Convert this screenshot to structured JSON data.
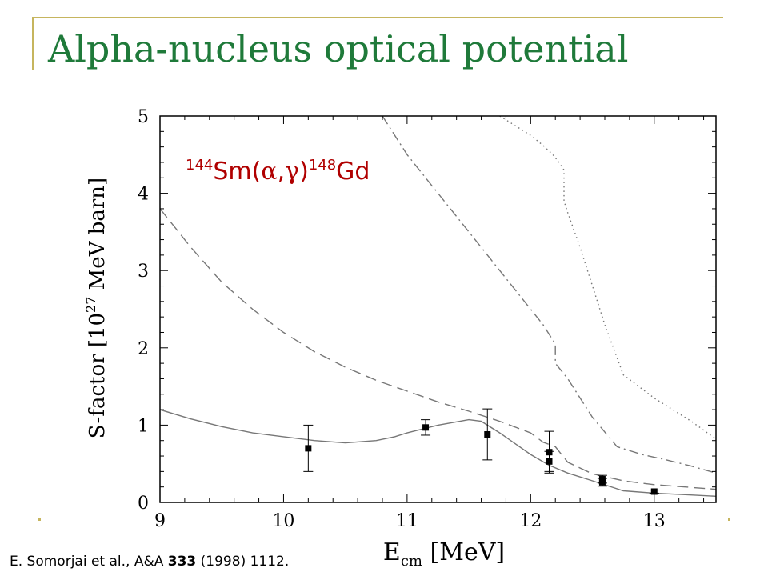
{
  "slide": {
    "title": "Alpha-nucleus optical potential",
    "citation": {
      "authors": "E. Somorjai et al., A&A ",
      "volume": "333",
      "rest": " (1998) 1112."
    }
  },
  "colors": {
    "title": "#1f7a3a",
    "accent_rule": "#c6b55e",
    "reaction_label": "#b00000",
    "curve": "#777777",
    "points": "#000000"
  },
  "chart_data": {
    "type": "line",
    "title": "",
    "xlabel": "E",
    "xlabel_sub": "cm",
    "xlabel_unit": " [MeV]",
    "ylabel_prefix": "S-factor   [10",
    "ylabel_sup": "27",
    "ylabel_suffix": " MeV barn]",
    "xlim": [
      9,
      13.5
    ],
    "ylim": [
      0,
      5
    ],
    "xticks": [
      9,
      10,
      11,
      12,
      13
    ],
    "yticks": [
      0,
      1,
      2,
      3,
      4,
      5
    ],
    "grid": false,
    "annotation": {
      "pre": "144",
      "target": "Sm(",
      "alpha": "α",
      "comma": ",",
      "gamma": "γ",
      "close": ")",
      "post": "148",
      "product": "Gd",
      "at": [
        9.2,
        4.2
      ]
    },
    "series": [
      {
        "style": "dotted",
        "x": [
          11.75,
          11.9,
          12.0,
          12.1,
          12.18,
          12.23,
          12.27,
          12.27,
          12.3,
          12.4,
          12.5,
          12.6,
          12.75,
          13.0,
          13.3,
          13.5
        ],
        "y": [
          5.0,
          4.85,
          4.75,
          4.62,
          4.5,
          4.4,
          4.3,
          3.9,
          3.75,
          3.3,
          2.8,
          2.3,
          1.65,
          1.35,
          1.05,
          0.82
        ]
      },
      {
        "style": "dashdot",
        "x": [
          10.8,
          11.0,
          11.25,
          11.5,
          11.75,
          12.0,
          12.1,
          12.18,
          12.2,
          12.2,
          12.3,
          12.5,
          12.7,
          12.9,
          13.1,
          13.3,
          13.5
        ],
        "y": [
          5.0,
          4.5,
          4.0,
          3.5,
          3.0,
          2.5,
          2.3,
          2.1,
          2.05,
          1.8,
          1.6,
          1.1,
          0.72,
          0.62,
          0.55,
          0.47,
          0.38
        ]
      },
      {
        "style": "dashed",
        "x": [
          9.0,
          9.25,
          9.5,
          9.75,
          10.0,
          10.25,
          10.5,
          10.75,
          11.0,
          11.25,
          11.5,
          11.75,
          12.0,
          12.1,
          12.2,
          12.3,
          12.5,
          12.75,
          13.0,
          13.25,
          13.5
        ],
        "y": [
          3.8,
          3.3,
          2.85,
          2.5,
          2.2,
          1.95,
          1.75,
          1.58,
          1.44,
          1.3,
          1.18,
          1.05,
          0.9,
          0.78,
          0.72,
          0.52,
          0.37,
          0.28,
          0.23,
          0.2,
          0.17
        ]
      },
      {
        "style": "solid",
        "x": [
          9.0,
          9.25,
          9.5,
          9.75,
          10.0,
          10.25,
          10.5,
          10.75,
          10.9,
          11.0,
          11.25,
          11.5,
          11.6,
          11.75,
          12.0,
          12.15,
          12.3,
          12.5,
          12.75,
          13.0,
          13.25,
          13.5
        ],
        "y": [
          1.2,
          1.08,
          0.98,
          0.9,
          0.85,
          0.8,
          0.77,
          0.8,
          0.85,
          0.9,
          1.0,
          1.07,
          1.05,
          0.9,
          0.62,
          0.48,
          0.38,
          0.28,
          0.15,
          0.12,
          0.1,
          0.08
        ]
      }
    ],
    "points": {
      "x": [
        10.2,
        11.15,
        11.65,
        12.15,
        12.15,
        12.58,
        12.58,
        13.0
      ],
      "y": [
        0.7,
        0.97,
        0.88,
        0.65,
        0.53,
        0.3,
        0.26,
        0.14
      ],
      "yerr": [
        0.3,
        0.1,
        0.33,
        0.27,
        0.13,
        0.05,
        0.05,
        0.02
      ]
    }
  }
}
